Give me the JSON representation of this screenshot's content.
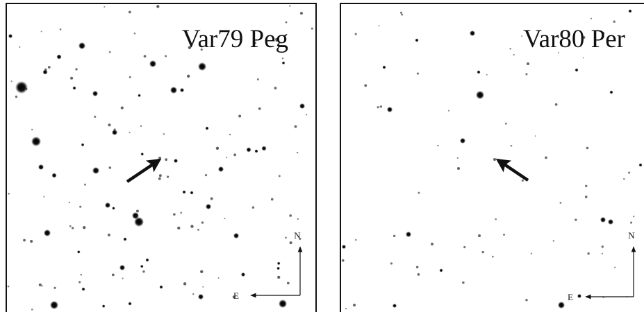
{
  "panels": [
    {
      "label": "Var79 Peg",
      "north": "N",
      "east": "E"
    },
    {
      "label": "Var80 Per",
      "north": "N",
      "east": "E"
    }
  ]
}
